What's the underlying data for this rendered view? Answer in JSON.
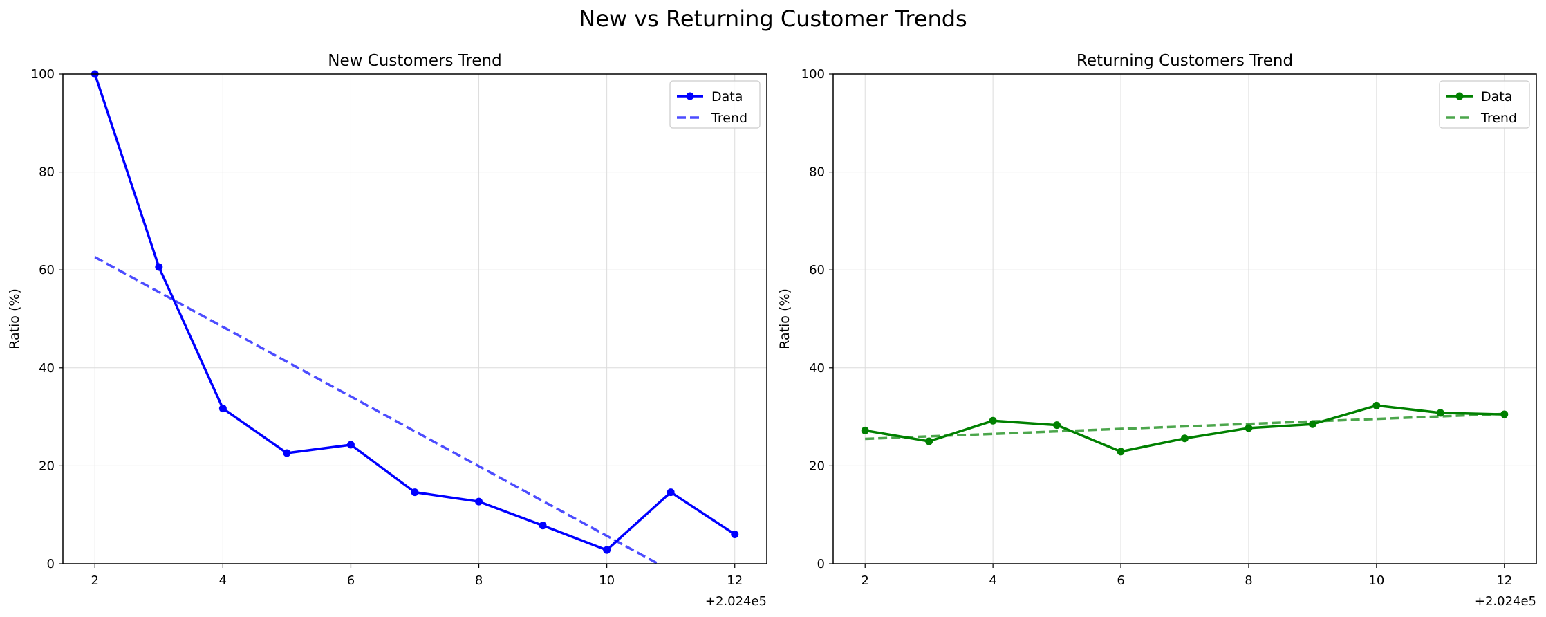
{
  "title": "New vs Returning Customer Trends",
  "chart_data": [
    {
      "type": "line",
      "title": "New Customers Trend",
      "xlabel": "",
      "ylabel": "Ratio (%)",
      "x_offset_text": "+2.024e5",
      "x": [
        2,
        3,
        4,
        5,
        6,
        7,
        8,
        9,
        10,
        11,
        12
      ],
      "xlim": [
        1.5,
        12.5
      ],
      "ylim": [
        0,
        100
      ],
      "xticks": [
        2,
        4,
        6,
        8,
        10,
        12
      ],
      "yticks": [
        0,
        20,
        40,
        60,
        80,
        100
      ],
      "grid": true,
      "legend_position": "top-right",
      "color": "#0000ff",
      "series": [
        {
          "name": "Data",
          "style": "solid-marker",
          "values": [
            100,
            60.6,
            31.7,
            22.6,
            24.3,
            14.6,
            12.7,
            7.8,
            2.8,
            14.6,
            6.0
          ]
        },
        {
          "name": "Trend",
          "style": "dashed",
          "x": [
            2,
            10.8
          ],
          "values": [
            62.6,
            0
          ]
        }
      ]
    },
    {
      "type": "line",
      "title": "Returning Customers Trend",
      "xlabel": "",
      "ylabel": "Ratio (%)",
      "x_offset_text": "+2.024e5",
      "x": [
        2,
        3,
        4,
        5,
        6,
        7,
        8,
        9,
        10,
        11,
        12
      ],
      "xlim": [
        1.5,
        12.5
      ],
      "ylim": [
        0,
        100
      ],
      "xticks": [
        2,
        4,
        6,
        8,
        10,
        12
      ],
      "yticks": [
        0,
        20,
        40,
        60,
        80,
        100
      ],
      "grid": true,
      "legend_position": "top-right",
      "color": "#008000",
      "series": [
        {
          "name": "Data",
          "style": "solid-marker",
          "values": [
            27.2,
            25.0,
            29.2,
            28.3,
            22.9,
            25.6,
            27.7,
            28.5,
            32.3,
            30.8,
            30.5
          ]
        },
        {
          "name": "Trend",
          "style": "dashed",
          "x": [
            2,
            12
          ],
          "values": [
            25.5,
            30.6
          ]
        }
      ]
    }
  ]
}
